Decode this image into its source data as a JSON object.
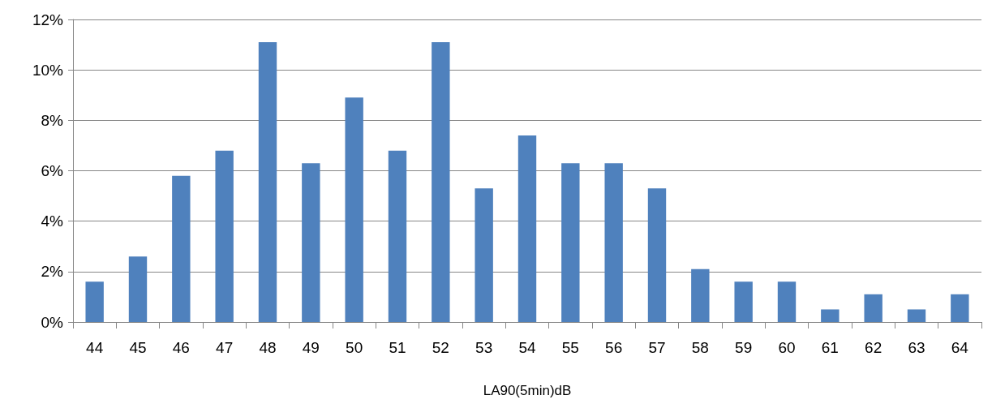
{
  "chart_data": {
    "type": "bar",
    "xlabel": "LA90(5min)dB",
    "categories": [
      "44",
      "45",
      "46",
      "47",
      "48",
      "49",
      "50",
      "51",
      "52",
      "53",
      "54",
      "55",
      "56",
      "57",
      "58",
      "59",
      "60",
      "61",
      "62",
      "63",
      "64"
    ],
    "values": [
      1.6,
      2.6,
      5.8,
      6.8,
      11.1,
      6.3,
      8.9,
      6.8,
      11.1,
      5.3,
      7.4,
      6.3,
      6.3,
      5.3,
      2.1,
      1.6,
      1.6,
      0.5,
      1.1,
      0.5,
      1.1
    ],
    "color": "#4f81bd",
    "ylim": [
      0,
      12
    ],
    "yticks": [
      {
        "value": 0,
        "label": "0%"
      },
      {
        "value": 2,
        "label": "2%"
      },
      {
        "value": 4,
        "label": "4%"
      },
      {
        "value": 6,
        "label": "6%"
      },
      {
        "value": 8,
        "label": "8%"
      },
      {
        "value": 10,
        "label": "10%"
      },
      {
        "value": 12,
        "label": "12%"
      }
    ],
    "grid": "y"
  }
}
